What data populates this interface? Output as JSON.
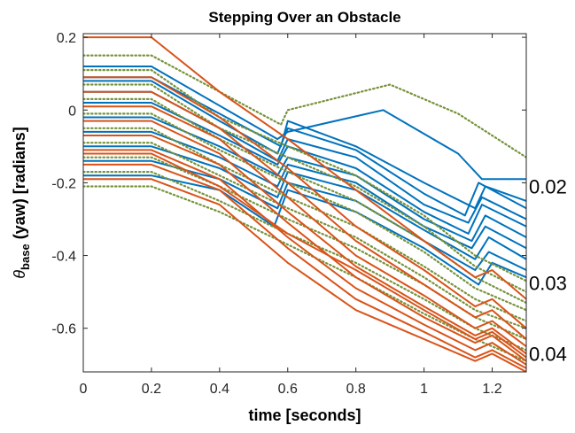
{
  "chart_data": {
    "type": "line",
    "title": "Stepping Over an Obstacle",
    "xlabel": "time [seconds]",
    "ylabel": {
      "symbol": "θ",
      "subscript": "base",
      "rest": " (yaw) [radians]"
    },
    "xlim": [
      0,
      1.3
    ],
    "ylim": [
      -0.72,
      0.21
    ],
    "xticks": [
      0,
      0.2,
      0.4,
      0.6,
      0.8,
      1,
      1.2
    ],
    "xtick_labels": [
      "0",
      "0.2",
      "0.4",
      "0.6",
      "0.8",
      "1",
      "1.2"
    ],
    "yticks": [
      0.2,
      0,
      -0.2,
      -0.4,
      -0.6
    ],
    "ytick_labels": [
      "0.2",
      "0",
      "-0.2",
      "-0.4",
      "-0.6"
    ],
    "grid": false,
    "annotations": [
      {
        "text": "0.02",
        "y": -0.21
      },
      {
        "text": "0.03",
        "y": -0.475
      },
      {
        "text": "0.04",
        "y": -0.67
      }
    ],
    "series": [
      {
        "group": "0.02",
        "color": "#0072BD",
        "dash": "solid",
        "t_shift": 0.0,
        "lines": [
          {
            "x": [
              0,
              0.2,
              0.57,
              0.6,
              0.88,
              1.1,
              1.17,
              1.3
            ],
            "y": [
              0.12,
              0.12,
              -0.08,
              -0.06,
              0.0,
              -0.12,
              -0.19,
              -0.19
            ]
          },
          {
            "x": [
              0,
              0.2,
              0.4,
              0.57,
              0.6,
              0.8,
              1.0,
              1.12,
              1.16,
              1.3
            ],
            "y": [
              0.08,
              0.08,
              -0.03,
              -0.12,
              -0.05,
              -0.11,
              -0.23,
              -0.29,
              -0.2,
              -0.27
            ]
          },
          {
            "x": [
              0,
              0.2,
              0.4,
              0.57,
              0.6,
              0.8,
              1.0,
              1.13,
              1.17,
              1.3
            ],
            "y": [
              0.05,
              0.05,
              -0.05,
              -0.14,
              -0.08,
              -0.13,
              -0.26,
              -0.31,
              -0.24,
              -0.3
            ]
          },
          {
            "x": [
              0,
              0.2,
              0.4,
              0.57,
              0.6,
              0.8,
              1.0,
              1.13,
              1.17,
              1.3
            ],
            "y": [
              0.02,
              0.02,
              -0.07,
              -0.15,
              -0.1,
              -0.16,
              -0.28,
              -0.34,
              -0.26,
              -0.32
            ]
          },
          {
            "x": [
              0,
              0.2,
              0.4,
              0.57,
              0.6,
              0.8,
              1.0,
              1.14,
              1.18,
              1.3
            ],
            "y": [
              -0.02,
              -0.02,
              -0.1,
              -0.18,
              -0.13,
              -0.18,
              -0.3,
              -0.36,
              -0.29,
              -0.35
            ]
          },
          {
            "x": [
              0,
              0.2,
              0.4,
              0.57,
              0.6,
              0.8,
              1.0,
              1.14,
              1.18,
              1.3
            ],
            "y": [
              -0.06,
              -0.06,
              -0.13,
              -0.21,
              -0.15,
              -0.2,
              -0.32,
              -0.38,
              -0.32,
              -0.38
            ]
          },
          {
            "x": [
              0,
              0.2,
              0.4,
              0.57,
              0.6,
              0.8,
              1.0,
              1.15,
              1.19,
              1.3
            ],
            "y": [
              -0.1,
              -0.1,
              -0.16,
              -0.24,
              -0.17,
              -0.22,
              -0.33,
              -0.41,
              -0.35,
              -0.41
            ]
          },
          {
            "x": [
              0,
              0.2,
              0.4,
              0.57,
              0.6,
              0.8,
              1.0,
              1.15,
              1.19,
              1.3
            ],
            "y": [
              -0.14,
              -0.14,
              -0.19,
              -0.27,
              -0.2,
              -0.25,
              -0.36,
              -0.44,
              -0.39,
              -0.44
            ]
          },
          {
            "x": [
              0,
              0.2,
              0.4,
              0.56,
              0.6,
              0.8,
              1.0,
              1.16,
              1.2,
              1.3
            ],
            "y": [
              -0.18,
              -0.18,
              -0.22,
              -0.32,
              -0.22,
              -0.28,
              -0.38,
              -0.48,
              -0.42,
              -0.46
            ]
          },
          {
            "x": [
              0,
              0.2,
              0.4,
              0.58,
              0.6,
              0.8,
              1.0,
              1.15,
              1.18,
              1.3
            ],
            "y": [
              0.09,
              0.09,
              -0.01,
              -0.1,
              -0.03,
              -0.1,
              -0.2,
              -0.27,
              -0.21,
              -0.25
            ]
          }
        ]
      },
      {
        "group": "0.03",
        "color": "#77933C",
        "dash": "dotted",
        "t_shift": 0.0,
        "lines": [
          {
            "x": [
              0,
              0.2,
              0.58,
              0.6,
              0.9,
              1.1,
              1.3
            ],
            "y": [
              0.15,
              0.15,
              -0.04,
              0.0,
              0.07,
              -0.01,
              -0.13
            ]
          },
          {
            "x": [
              0,
              0.2,
              0.4,
              0.6,
              0.8,
              1.0,
              1.15,
              1.3
            ],
            "y": [
              0.11,
              0.11,
              -0.02,
              -0.1,
              -0.18,
              -0.29,
              -0.4,
              -0.47
            ]
          },
          {
            "x": [
              0,
              0.2,
              0.4,
              0.6,
              0.8,
              1.0,
              1.15,
              1.3
            ],
            "y": [
              0.07,
              0.07,
              -0.05,
              -0.13,
              -0.21,
              -0.32,
              -0.43,
              -0.5
            ]
          },
          {
            "x": [
              0,
              0.2,
              0.4,
              0.6,
              0.8,
              1.0,
              1.15,
              1.3
            ],
            "y": [
              0.03,
              0.03,
              -0.08,
              -0.17,
              -0.25,
              -0.36,
              -0.46,
              -0.53
            ]
          },
          {
            "x": [
              0,
              0.2,
              0.4,
              0.6,
              0.8,
              1.0,
              1.15,
              1.3
            ],
            "y": [
              -0.01,
              -0.01,
              -0.11,
              -0.2,
              -0.28,
              -0.39,
              -0.49,
              -0.55
            ]
          },
          {
            "x": [
              0,
              0.2,
              0.4,
              0.6,
              0.8,
              1.0,
              1.15,
              1.3
            ],
            "y": [
              -0.05,
              -0.05,
              -0.15,
              -0.24,
              -0.32,
              -0.43,
              -0.52,
              -0.58
            ]
          },
          {
            "x": [
              0,
              0.2,
              0.4,
              0.6,
              0.8,
              1.0,
              1.15,
              1.3
            ],
            "y": [
              -0.09,
              -0.09,
              -0.18,
              -0.27,
              -0.35,
              -0.46,
              -0.55,
              -0.6
            ]
          },
          {
            "x": [
              0,
              0.2,
              0.4,
              0.6,
              0.8,
              1.0,
              1.15,
              1.3
            ],
            "y": [
              -0.13,
              -0.13,
              -0.21,
              -0.3,
              -0.38,
              -0.48,
              -0.57,
              -0.63
            ]
          },
          {
            "x": [
              0,
              0.2,
              0.4,
              0.6,
              0.8,
              1.0,
              1.15,
              1.3
            ],
            "y": [
              -0.17,
              -0.17,
              -0.25,
              -0.34,
              -0.42,
              -0.52,
              -0.6,
              -0.66
            ]
          },
          {
            "x": [
              0,
              0.2,
              0.4,
              0.6,
              0.8,
              1.0,
              1.15,
              1.3
            ],
            "y": [
              -0.21,
              -0.21,
              -0.28,
              -0.37,
              -0.46,
              -0.56,
              -0.63,
              -0.69
            ]
          }
        ]
      },
      {
        "group": "0.04",
        "color": "#D95319",
        "dash": "solid",
        "t_shift": 0.0,
        "lines": [
          {
            "x": [
              0,
              0.2,
              0.4,
              0.6,
              0.8,
              1.0,
              1.15,
              1.2,
              1.3
            ],
            "y": [
              0.2,
              0.2,
              0.05,
              -0.08,
              -0.22,
              -0.36,
              -0.46,
              -0.44,
              -0.52
            ]
          },
          {
            "x": [
              0,
              0.2,
              0.4,
              0.6,
              0.8,
              1.0,
              1.15,
              1.2,
              1.3
            ],
            "y": [
              0.09,
              0.09,
              -0.02,
              -0.16,
              -0.32,
              -0.44,
              -0.54,
              -0.52,
              -0.6
            ]
          },
          {
            "x": [
              0,
              0.2,
              0.4,
              0.6,
              0.8,
              1.0,
              1.15,
              1.2,
              1.3
            ],
            "y": [
              0.05,
              0.05,
              -0.05,
              -0.2,
              -0.36,
              -0.48,
              -0.57,
              -0.55,
              -0.63
            ]
          },
          {
            "x": [
              0,
              0.2,
              0.4,
              0.6,
              0.8,
              1.0,
              1.15,
              1.2,
              1.3
            ],
            "y": [
              0.01,
              0.01,
              -0.08,
              -0.24,
              -0.4,
              -0.51,
              -0.6,
              -0.58,
              -0.65
            ]
          },
          {
            "x": [
              0,
              0.2,
              0.4,
              0.6,
              0.8,
              1.0,
              1.15,
              1.2,
              1.3
            ],
            "y": [
              -0.03,
              -0.03,
              -0.12,
              -0.28,
              -0.43,
              -0.54,
              -0.62,
              -0.6,
              -0.67
            ]
          },
          {
            "x": [
              0,
              0.2,
              0.4,
              0.6,
              0.8,
              1.0,
              1.15,
              1.2,
              1.3
            ],
            "y": [
              -0.07,
              -0.07,
              -0.15,
              -0.31,
              -0.46,
              -0.57,
              -0.64,
              -0.62,
              -0.69
            ]
          },
          {
            "x": [
              0,
              0.2,
              0.4,
              0.6,
              0.8,
              1.0,
              1.15,
              1.2,
              1.3
            ],
            "y": [
              -0.11,
              -0.11,
              -0.19,
              -0.35,
              -0.49,
              -0.59,
              -0.66,
              -0.64,
              -0.7
            ]
          },
          {
            "x": [
              0,
              0.2,
              0.4,
              0.6,
              0.8,
              1.0,
              1.15,
              1.2,
              1.3
            ],
            "y": [
              -0.15,
              -0.15,
              -0.22,
              -0.38,
              -0.52,
              -0.61,
              -0.68,
              -0.66,
              -0.71
            ]
          },
          {
            "x": [
              0,
              0.2,
              0.4,
              0.6,
              0.8,
              1.0,
              1.15,
              1.2,
              1.3
            ],
            "y": [
              -0.19,
              -0.19,
              -0.26,
              -0.42,
              -0.55,
              -0.63,
              -0.69,
              -0.67,
              -0.72
            ]
          },
          {
            "x": [
              0,
              0.2,
              0.4,
              0.6,
              0.8,
              1.0,
              1.15,
              1.2,
              1.3
            ],
            "y": [
              -0.12,
              -0.12,
              -0.21,
              -0.34,
              -0.44,
              -0.55,
              -0.63,
              -0.61,
              -0.68
            ]
          }
        ]
      }
    ]
  }
}
